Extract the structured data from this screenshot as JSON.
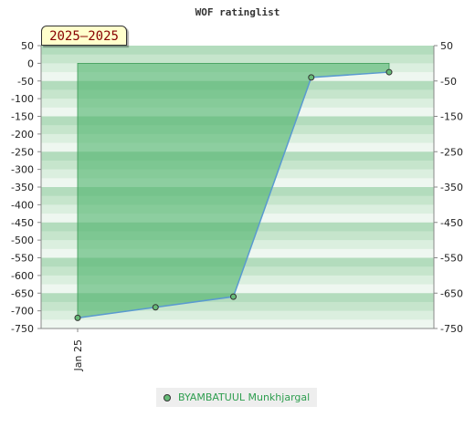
{
  "chart_data": {
    "type": "area",
    "title": "WOF ratinglist",
    "period_label": "2025–2025",
    "x_tick_labels": [
      "Jan 25"
    ],
    "x_index": [
      0,
      1,
      2,
      3,
      4
    ],
    "series": [
      {
        "name": "BYAMBATUUL Munkhjargal",
        "values": [
          -720,
          -690,
          -660,
          -40,
          -25
        ]
      }
    ],
    "ylim": [
      -750,
      50
    ],
    "y_ticks_left": [
      50,
      0,
      -50,
      -100,
      -150,
      -200,
      -250,
      -300,
      -350,
      -400,
      -450,
      -500,
      -550,
      -600,
      -650,
      -700,
      -750
    ],
    "y_ticks_right": [
      50,
      -50,
      -150,
      -250,
      -350,
      -450,
      -550,
      -650,
      -750
    ],
    "baseline": 0,
    "grid": "horizontal bands",
    "legend_position": "bottom-center"
  },
  "colors": {
    "fill": "#4db36b",
    "line": "#5a9ad0",
    "marker": "#66bb77",
    "legend_text": "#2e9e4f",
    "period_text": "#880000",
    "period_bg": "#ffffcc"
  }
}
